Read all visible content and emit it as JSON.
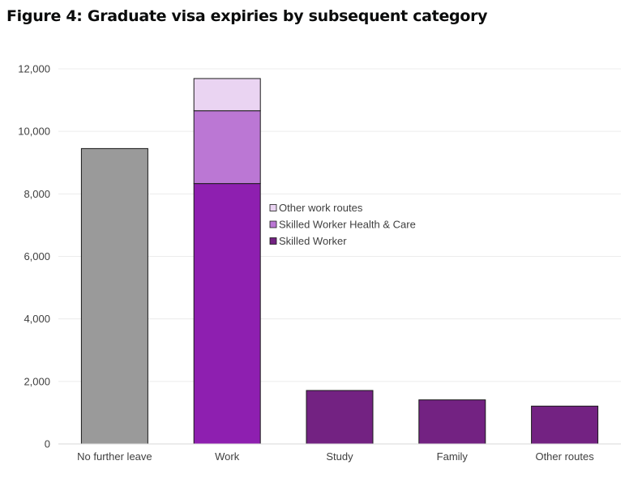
{
  "chart_data": {
    "type": "bar",
    "stacked": true,
    "title": "Figure 4: Graduate visa expiries by subsequent category",
    "xlabel": "",
    "ylabel": "",
    "ylim": [
      0,
      12000
    ],
    "yticks": [
      0,
      2000,
      4000,
      6000,
      8000,
      10000,
      12000
    ],
    "ytick_labels": [
      "0",
      "2,000",
      "4,000",
      "6,000",
      "8,000",
      "10,000",
      "12,000"
    ],
    "grid": true,
    "categories": [
      "No further leave",
      "Work",
      "Study",
      "Family",
      "Other routes"
    ],
    "bars": [
      {
        "category": "No further leave",
        "segments": [
          {
            "value": 9450,
            "color": "#9a9a9a"
          }
        ]
      },
      {
        "category": "Work",
        "segments": [
          {
            "series": "Skilled Worker",
            "value": 8330,
            "color": "#8e1fb0"
          },
          {
            "series": "Skilled Worker Health & Care",
            "value": 2330,
            "color": "#bb77d4"
          },
          {
            "series": "Other work routes",
            "value": 1030,
            "color": "#ead4f2"
          }
        ]
      },
      {
        "category": "Study",
        "segments": [
          {
            "value": 1710,
            "color": "#732282"
          }
        ]
      },
      {
        "category": "Family",
        "segments": [
          {
            "value": 1410,
            "color": "#732282"
          }
        ]
      },
      {
        "category": "Other routes",
        "segments": [
          {
            "value": 1210,
            "color": "#732282"
          }
        ]
      }
    ],
    "legend": {
      "placement": "center",
      "items": [
        {
          "name": "Other work routes",
          "color": "#ead4f2"
        },
        {
          "name": "Skilled Worker Health & Care",
          "color": "#bb77d4"
        },
        {
          "name": "Skilled Worker",
          "color": "#732282"
        }
      ]
    }
  }
}
